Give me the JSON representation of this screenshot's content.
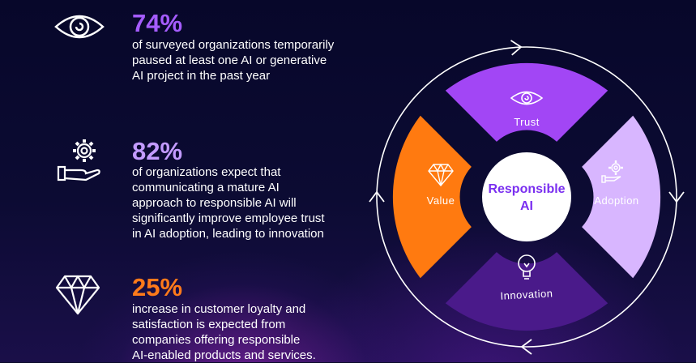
{
  "stats": [
    {
      "value": "74%",
      "text": [
        "of surveyed organizations temporarily",
        "paused at least one AI or generative",
        "AI project in the past year"
      ],
      "icon": "eye-icon",
      "color": "#a55cff"
    },
    {
      "value": "82%",
      "text": [
        "of organizations expect that",
        "communicating a mature AI",
        "approach to responsible AI will",
        "significantly improve employee trust",
        "in AI adoption, leading to innovation"
      ],
      "icon": "gear-hand-icon",
      "color": "#c39bff"
    },
    {
      "value": "25%",
      "text": [
        "increase in customer loyalty and",
        "satisfaction is expected from",
        "companies offering responsible",
        "AI-enabled products and services."
      ],
      "icon": "diamond-icon",
      "color": "#ff7a1a"
    }
  ],
  "diagram": {
    "center": [
      "Responsible",
      "AI"
    ],
    "segments": [
      {
        "label": "Trust",
        "color": "#a246f5",
        "icon": "eye-icon"
      },
      {
        "label": "Adoption",
        "color": "#d8b6ff",
        "icon": "gear-hand-icon"
      },
      {
        "label": "Innovation",
        "color": "#4a1a8a",
        "icon": "lightbulb-icon"
      },
      {
        "label": "Value",
        "color": "#ff7a10",
        "icon": "diamond-icon"
      }
    ]
  }
}
